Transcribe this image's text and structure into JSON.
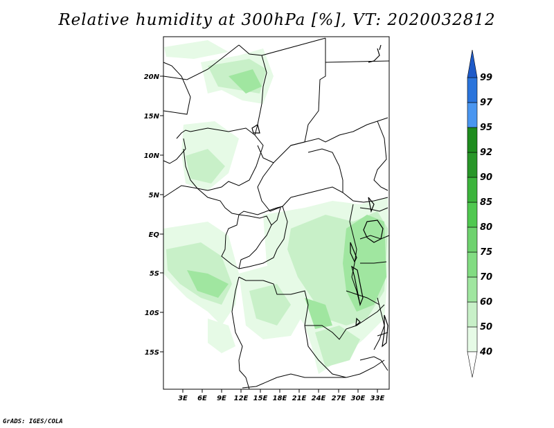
{
  "title": "Relative humidity at 300hPa [%], VT: 2020032812",
  "credit": "GrADS: IGES/COLA",
  "map": {
    "lat_labels": [
      "20N",
      "15N",
      "10N",
      "5N",
      "EQ",
      "5S",
      "10S",
      "15S"
    ],
    "lon_labels": [
      "3E",
      "6E",
      "9E",
      "12E",
      "15E",
      "18E",
      "21E",
      "24E",
      "27E",
      "30E",
      "33E"
    ]
  },
  "colorbar": {
    "labels": [
      "40",
      "50",
      "60",
      "70",
      "75",
      "80",
      "85",
      "90",
      "92",
      "95",
      "97",
      "99"
    ],
    "colors": [
      "#e6fae6",
      "#c8f0c8",
      "#a0e6a0",
      "#82dc82",
      "#6ed26e",
      "#50c850",
      "#3cb43c",
      "#289628",
      "#1e8c1e",
      "#4a96f0",
      "#2a74dc",
      "#1e5ac8"
    ]
  },
  "colors": {
    "humidity_light": "#e6fae6",
    "humidity_mid": "#c8f0c8",
    "humidity_dark": "#a0e6a0",
    "border": "#000000"
  }
}
